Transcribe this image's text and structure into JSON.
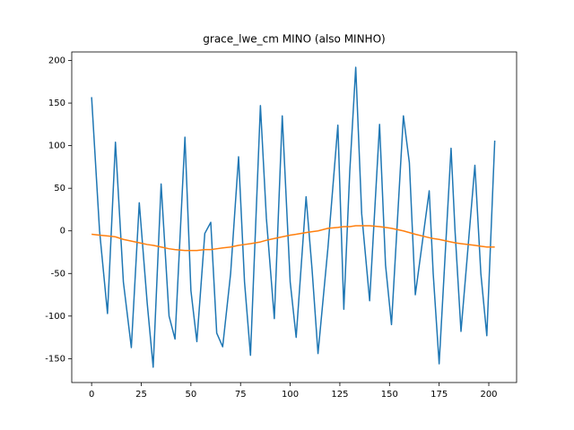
{
  "chart_data": {
    "type": "line",
    "title": "grace_lwe_cm MINO (also MINHO)",
    "x": [
      0,
      4,
      8,
      12,
      16,
      20,
      24,
      28,
      31,
      35,
      39,
      42,
      47,
      50,
      53,
      57,
      60,
      63,
      66,
      70,
      74,
      77,
      80,
      85,
      88,
      92,
      96,
      100,
      103,
      108,
      111,
      114,
      119,
      124,
      127,
      130,
      133,
      136,
      140,
      145,
      148,
      151,
      157,
      160,
      163,
      170,
      172,
      175,
      181,
      183,
      186,
      193,
      196,
      199,
      203
    ],
    "series": [
      {
        "color": "#1f77b4",
        "values": [
          157,
          0,
          -97,
          104,
          -60,
          -137,
          33,
          -85,
          -160,
          55,
          -100,
          -127,
          110,
          -70,
          -130,
          -3,
          10,
          -120,
          -136,
          -50,
          87,
          -60,
          -146,
          147,
          15,
          -103,
          135,
          -60,
          -125,
          40,
          -45,
          -144,
          -20,
          124,
          -92,
          70,
          192,
          20,
          -82,
          125,
          -40,
          -110,
          135,
          80,
          -75,
          47,
          -50,
          -156,
          97,
          0,
          -118,
          77,
          -50,
          -123,
          106
        ]
      },
      {
        "color": "#ff7f0e",
        "values": [
          -4,
          -5,
          -6,
          -7,
          -10,
          -12,
          -14,
          -16,
          -17,
          -19,
          -21,
          -22,
          -23,
          -23,
          -23,
          -22,
          -22,
          -21,
          -20,
          -19,
          -17,
          -16,
          -15,
          -13,
          -11,
          -9,
          -7,
          -5,
          -4,
          -2,
          -1,
          0,
          3,
          4,
          5,
          5,
          6,
          6,
          6,
          5,
          4,
          3,
          0,
          -2,
          -4,
          -8,
          -9,
          -10,
          -13,
          -14,
          -15,
          -17,
          -18,
          -19,
          -19
        ]
      }
    ],
    "xlim": [
      -10,
      214
    ],
    "ylim": [
      -178,
      210
    ],
    "xticks": [
      0,
      25,
      50,
      75,
      100,
      125,
      150,
      175,
      200
    ],
    "yticks": [
      -150,
      -100,
      -50,
      0,
      50,
      100,
      150,
      200
    ]
  }
}
